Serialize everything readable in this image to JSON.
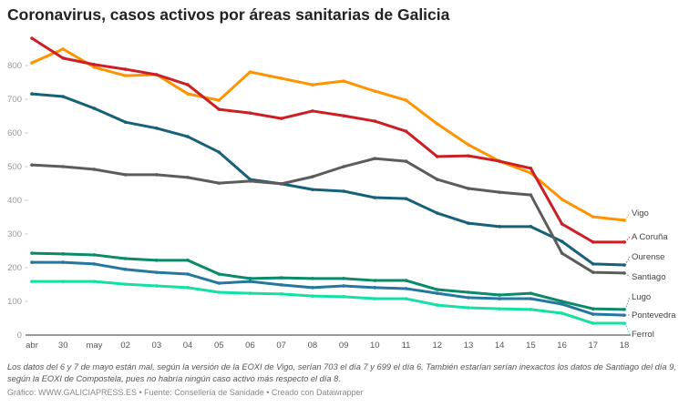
{
  "title": "Coronavirus, casos activos por áreas sanitarias de Galicia",
  "note": "Los datos del 6 y 7 de mayo están mal, según la versión de la EOXI de Vigo, serían 703 el día 7 y 699 el día 6. También estarían serían inexactos los datos de Santiago del día 9, según la EOXI de Compostela, pues no habría ningún caso activo más respecto el día 8.",
  "credits": "Gráfico: WWW.GALICIAPRESS.ES • Fuente: Consellería de Sanidade • Creado con Datawrapper",
  "chart_data": {
    "type": "line",
    "title": "Coronavirus, casos activos por áreas sanitarias de Galicia",
    "x": [
      "abr",
      "30",
      "may",
      "02",
      "03",
      "04",
      "05",
      "06",
      "07",
      "08",
      "09",
      "10",
      "11",
      "12",
      "13",
      "14",
      "15",
      "16",
      "17",
      "18"
    ],
    "ylim": [
      0,
      900
    ],
    "yticks": [
      0,
      100,
      200,
      300,
      400,
      500,
      600,
      700,
      800
    ],
    "grid": false,
    "legend": "direct labels at right end of lines",
    "series": [
      {
        "name": "Vigo",
        "color": "#ff9400",
        "values": [
          808,
          849,
          795,
          770,
          773,
          716,
          697,
          781,
          762,
          743,
          754,
          724,
          697,
          627,
          565,
          516,
          481,
          403,
          351,
          341
        ]
      },
      {
        "name": "A Coruña",
        "color": "#cc1f24",
        "values": [
          881,
          822,
          803,
          789,
          773,
          743,
          670,
          659,
          643,
          665,
          651,
          635,
          605,
          530,
          532,
          516,
          495,
          330,
          276,
          276
        ]
      },
      {
        "name": "Ourense",
        "color": "#17607a",
        "values": [
          716,
          708,
          673,
          632,
          614,
          589,
          543,
          462,
          449,
          432,
          427,
          408,
          405,
          362,
          332,
          322,
          322,
          278,
          211,
          208
        ]
      },
      {
        "name": "Santiago",
        "color": "#5c5c5c",
        "values": [
          505,
          500,
          492,
          476,
          476,
          468,
          451,
          457,
          449,
          470,
          500,
          524,
          516,
          462,
          435,
          424,
          416,
          243,
          186,
          184
        ]
      },
      {
        "name": "Lugo",
        "color": "#0a8a68",
        "values": [
          243,
          241,
          238,
          227,
          222,
          222,
          181,
          168,
          170,
          168,
          168,
          162,
          162,
          135,
          127,
          119,
          124,
          100,
          78,
          76
        ]
      },
      {
        "name": "Pontevedra",
        "color": "#2577a0",
        "values": [
          216,
          216,
          211,
          195,
          186,
          181,
          154,
          159,
          149,
          141,
          146,
          141,
          138,
          124,
          111,
          108,
          108,
          92,
          62,
          59
        ]
      },
      {
        "name": "Ferrol",
        "color": "#14e0a4",
        "values": [
          159,
          159,
          159,
          151,
          146,
          141,
          127,
          124,
          122,
          116,
          114,
          108,
          108,
          89,
          81,
          78,
          76,
          65,
          35,
          35
        ]
      }
    ],
    "label_positions_order": [
      "Vigo",
      "A Coruña",
      "Ourense",
      "Santiago",
      "Lugo",
      "Pontevedra",
      "Ferrol"
    ]
  }
}
